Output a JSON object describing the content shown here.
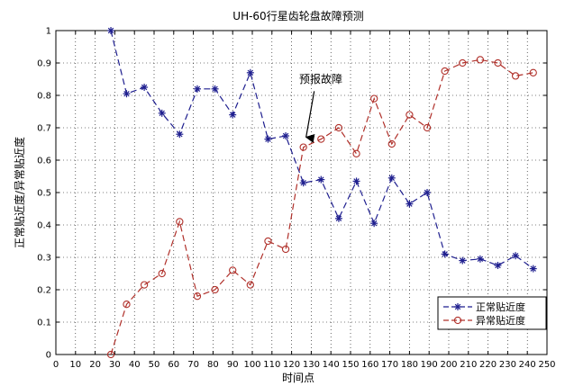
{
  "chart_data": {
    "type": "line",
    "title": "UH-60行星齿轮盘故障预测",
    "xlabel": "时间点",
    "ylabel": "正常贴近度/异常贴近度",
    "xlim": [
      0,
      250
    ],
    "ylim": [
      0,
      1
    ],
    "xticks": [
      0,
      10,
      20,
      30,
      40,
      50,
      60,
      70,
      80,
      90,
      100,
      110,
      120,
      130,
      140,
      150,
      160,
      170,
      180,
      190,
      200,
      210,
      220,
      230,
      240,
      250
    ],
    "yticks": [
      0,
      0.1,
      0.2,
      0.3,
      0.4,
      0.5,
      0.6,
      0.7,
      0.8,
      0.9,
      1
    ],
    "grid": true,
    "legend_position": "bottom-right",
    "series": [
      {
        "name": "正常贴近度",
        "color": "#1f1f8f",
        "marker": "star",
        "x": [
          28,
          36,
          45,
          54,
          63,
          72,
          81,
          90,
          99,
          108,
          117,
          126,
          135,
          144,
          153,
          162,
          171,
          180,
          189,
          198,
          207,
          216,
          225,
          234,
          243
        ],
        "y": [
          1.0,
          0.805,
          0.825,
          0.745,
          0.68,
          0.82,
          0.82,
          0.74,
          0.87,
          0.665,
          0.675,
          0.53,
          0.54,
          0.42,
          0.535,
          0.405,
          0.545,
          0.465,
          0.5,
          0.31,
          0.29,
          0.295,
          0.275,
          0.305,
          0.265
        ]
      },
      {
        "name": "异常贴近度",
        "color": "#b0302a",
        "marker": "circle",
        "x": [
          28,
          36,
          45,
          54,
          63,
          72,
          81,
          90,
          99,
          108,
          117,
          126,
          135,
          144,
          153,
          162,
          171,
          180,
          189,
          198,
          207,
          216,
          225,
          234,
          243
        ],
        "y": [
          0.0,
          0.155,
          0.215,
          0.25,
          0.41,
          0.18,
          0.2,
          0.26,
          0.215,
          0.35,
          0.325,
          0.64,
          0.665,
          0.7,
          0.62,
          0.79,
          0.65,
          0.74,
          0.7,
          0.875,
          0.9,
          0.91,
          0.9,
          0.86,
          0.87
        ]
      }
    ],
    "annotation": {
      "text": "预报故障",
      "arrow_to": [
        126,
        0.66
      ]
    }
  }
}
